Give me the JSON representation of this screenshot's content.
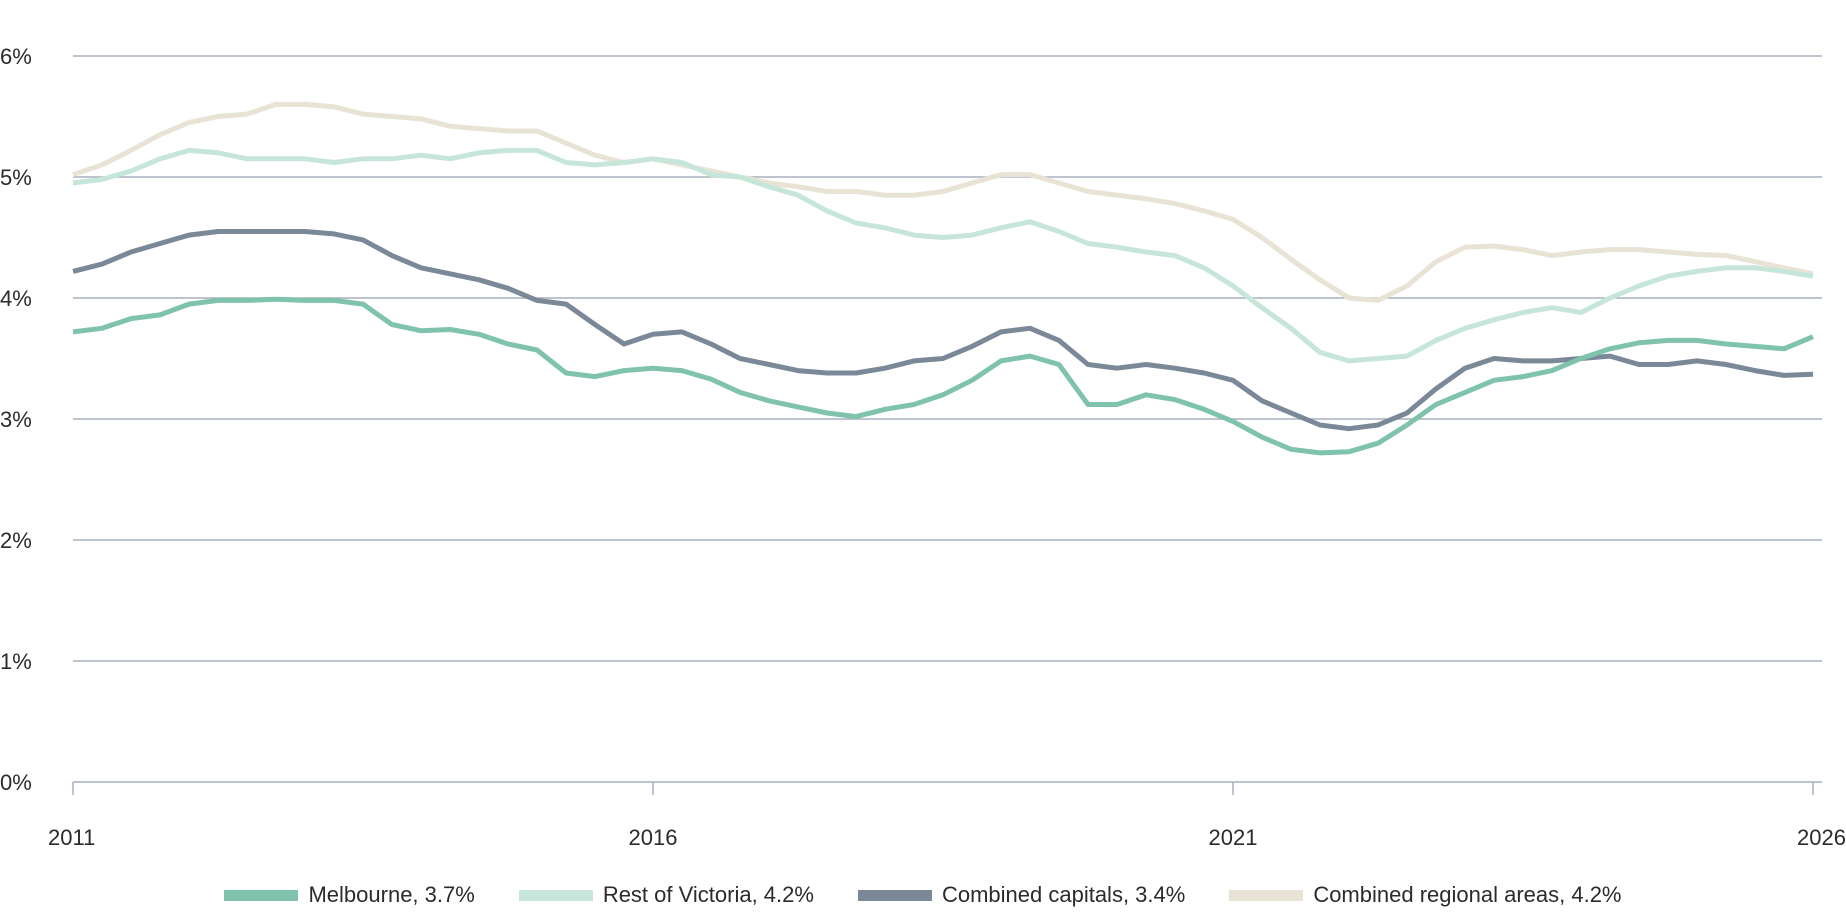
{
  "chart_data": {
    "type": "line",
    "title": "",
    "xlabel": "",
    "ylabel": "",
    "xlim": [
      2011,
      2026
    ],
    "ylim": [
      0,
      6
    ],
    "grid": true,
    "legend_placement": "bottom",
    "x_ticks": [
      "2011",
      "2016",
      "2021",
      "2026"
    ],
    "x_tick_values": [
      2011,
      2016,
      2021,
      2026
    ],
    "y_ticks": [
      "0%",
      "1%",
      "2%",
      "3%",
      "4%",
      "5%",
      "6%"
    ],
    "y_tick_values": [
      0,
      1,
      2,
      3,
      4,
      5,
      6
    ],
    "x_start": 2011,
    "x_step": 0.25,
    "series": [
      {
        "name": "Melbourne, 3.7%",
        "color": "#7fc3ad",
        "values": [
          3.72,
          3.75,
          3.83,
          3.86,
          3.95,
          3.98,
          3.98,
          3.99,
          3.98,
          3.98,
          3.95,
          3.78,
          3.73,
          3.74,
          3.7,
          3.62,
          3.57,
          3.38,
          3.35,
          3.4,
          3.42,
          3.4,
          3.33,
          3.22,
          3.15,
          3.1,
          3.05,
          3.02,
          3.08,
          3.12,
          3.2,
          3.32,
          3.48,
          3.52,
          3.45,
          3.12,
          3.12,
          3.2,
          3.16,
          3.08,
          2.98,
          2.85,
          2.75,
          2.72,
          2.73,
          2.8,
          2.95,
          3.12,
          3.22,
          3.32,
          3.35,
          3.4,
          3.5,
          3.58,
          3.63,
          3.65,
          3.65,
          3.62,
          3.6,
          3.58,
          3.68
        ]
      },
      {
        "name": "Rest of Victoria, 4.2%",
        "color": "#c5e6d9",
        "values": [
          4.95,
          4.98,
          5.05,
          5.15,
          5.22,
          5.2,
          5.15,
          5.15,
          5.15,
          5.12,
          5.15,
          5.15,
          5.18,
          5.15,
          5.2,
          5.22,
          5.22,
          5.12,
          5.1,
          5.12,
          5.15,
          5.12,
          5.02,
          5.0,
          4.92,
          4.85,
          4.72,
          4.62,
          4.58,
          4.52,
          4.5,
          4.52,
          4.58,
          4.63,
          4.55,
          4.45,
          4.42,
          4.38,
          4.35,
          4.25,
          4.1,
          3.92,
          3.75,
          3.55,
          3.48,
          3.5,
          3.52,
          3.65,
          3.75,
          3.82,
          3.88,
          3.92,
          3.88,
          4.0,
          4.1,
          4.18,
          4.22,
          4.25,
          4.25,
          4.22,
          4.18
        ]
      },
      {
        "name": "Combined capitals, 3.4%",
        "color": "#7a8898",
        "values": [
          4.22,
          4.28,
          4.38,
          4.45,
          4.52,
          4.55,
          4.55,
          4.55,
          4.55,
          4.53,
          4.48,
          4.35,
          4.25,
          4.2,
          4.15,
          4.08,
          3.98,
          3.95,
          3.78,
          3.62,
          3.7,
          3.72,
          3.62,
          3.5,
          3.45,
          3.4,
          3.38,
          3.38,
          3.42,
          3.48,
          3.5,
          3.6,
          3.72,
          3.75,
          3.65,
          3.45,
          3.42,
          3.45,
          3.42,
          3.38,
          3.32,
          3.15,
          3.05,
          2.95,
          2.92,
          2.95,
          3.05,
          3.25,
          3.42,
          3.5,
          3.48,
          3.48,
          3.5,
          3.52,
          3.45,
          3.45,
          3.48,
          3.45,
          3.4,
          3.36,
          3.37
        ]
      },
      {
        "name": "Combined regional areas, 4.2%",
        "color": "#e9e3d6",
        "values": [
          5.02,
          5.1,
          5.22,
          5.35,
          5.45,
          5.5,
          5.52,
          5.6,
          5.6,
          5.58,
          5.52,
          5.5,
          5.48,
          5.42,
          5.4,
          5.38,
          5.38,
          5.28,
          5.18,
          5.12,
          5.15,
          5.1,
          5.05,
          5.0,
          4.95,
          4.92,
          4.88,
          4.88,
          4.85,
          4.85,
          4.88,
          4.95,
          5.02,
          5.02,
          4.95,
          4.88,
          4.85,
          4.82,
          4.78,
          4.72,
          4.65,
          4.5,
          4.32,
          4.15,
          4.0,
          3.98,
          4.1,
          4.3,
          4.42,
          4.43,
          4.4,
          4.35,
          4.38,
          4.4,
          4.4,
          4.38,
          4.36,
          4.35,
          4.3,
          4.25,
          4.2
        ]
      }
    ]
  }
}
